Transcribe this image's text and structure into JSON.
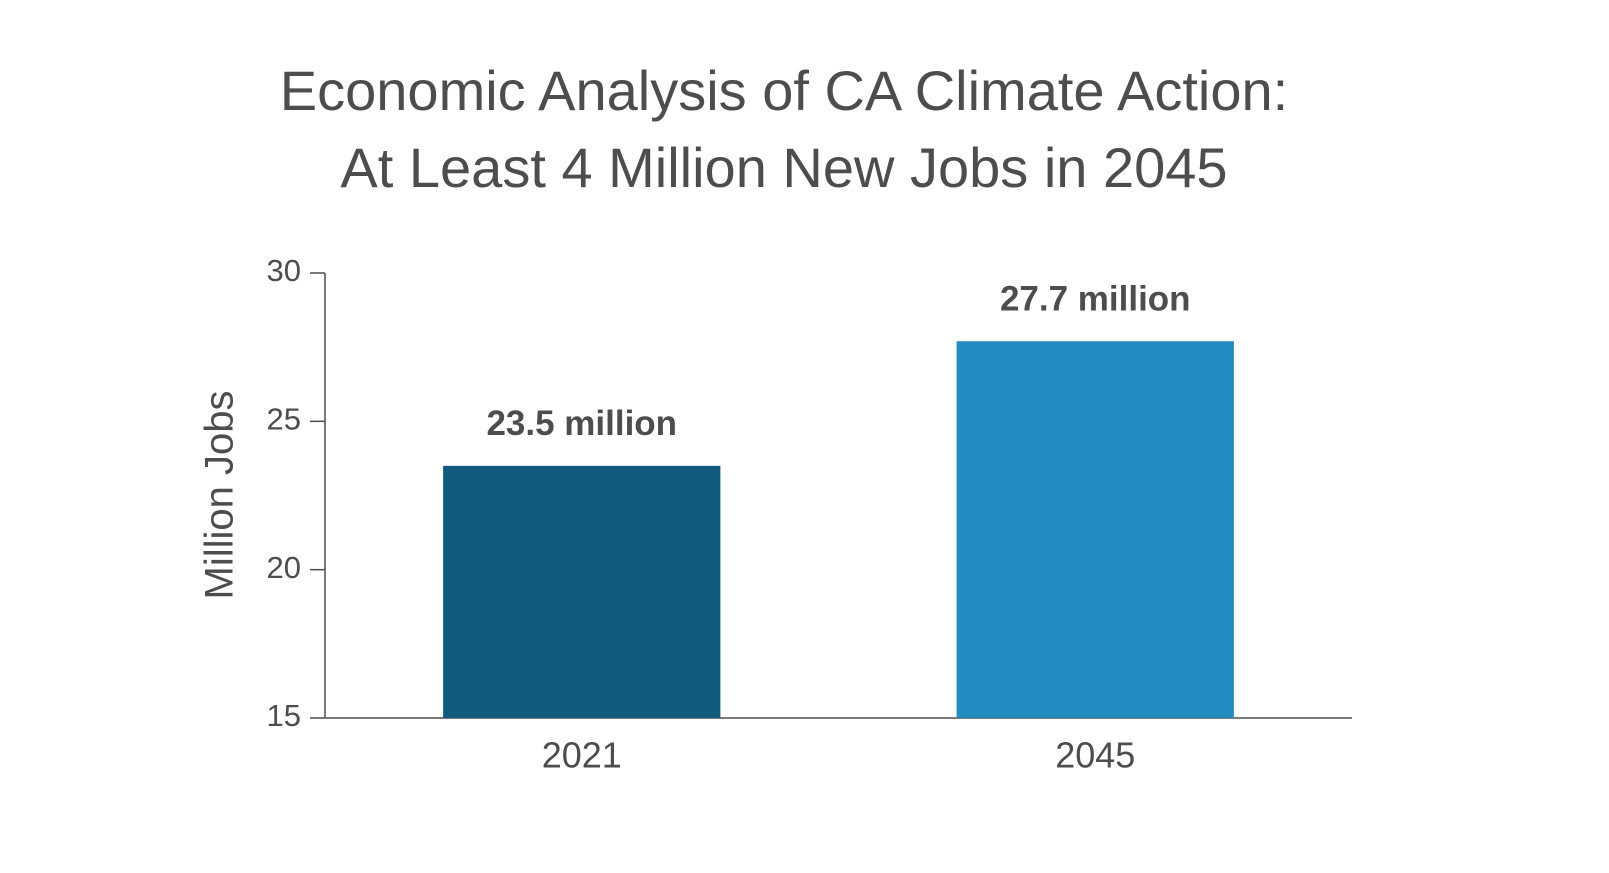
{
  "chart_data": {
    "type": "bar",
    "title": [
      "Economic Analysis of CA Climate Action:",
      "At Least 4 Million New Jobs in 2045"
    ],
    "ylabel": "Million Jobs",
    "categories": [
      "2021",
      "2045"
    ],
    "values": [
      23.5,
      27.7
    ],
    "value_labels": [
      "23.5 million",
      "27.7 million"
    ],
    "colors": [
      "#115b7d",
      "#228bbf"
    ],
    "ylim": [
      15,
      30
    ],
    "yticks": [
      15,
      20,
      25,
      30
    ],
    "grid": false
  }
}
